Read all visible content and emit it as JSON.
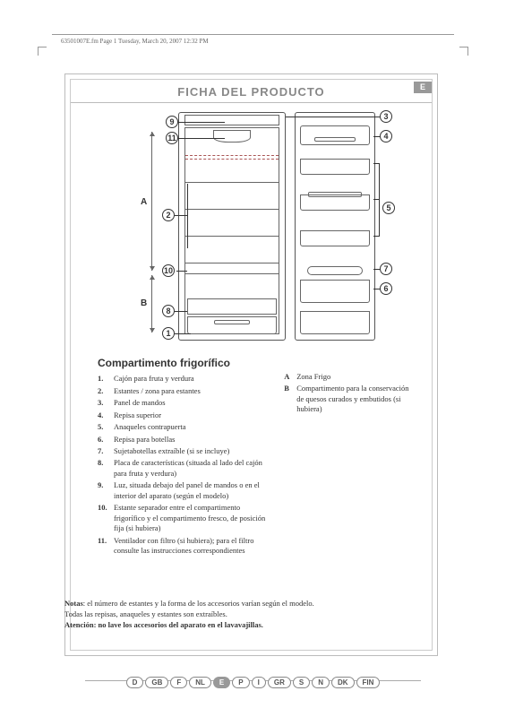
{
  "header": "63501007E.fm  Page 1  Tuesday, March 20, 2007  12:32 PM",
  "title": "FICHA DEL PRODUCTO",
  "lang_badge": "E",
  "callouts": {
    "c1": "1",
    "c2": "2",
    "c3": "3",
    "c4": "4",
    "c5": "5",
    "c6": "6",
    "c7": "7",
    "c8": "8",
    "c9": "9",
    "c10": "10",
    "c11": "11"
  },
  "zone_labels": {
    "A": "A",
    "B": "B"
  },
  "section_heading": "Compartimento frigorífico",
  "items": {
    "i1": "Cajón para fruta y verdura",
    "i2": "Estantes / zona para estantes",
    "i3": "Panel de mandos",
    "i4": "Repisa superior",
    "i5": "Anaqueles contrapuerta",
    "i6": "Repisa para botellas",
    "i7": "Sujetabotellas extraíble (si se incluye)",
    "i8": "Placa de características (situada al lado del cajón para fruta y verdura)",
    "i9": "Luz, situada debajo del panel de mandos o en el interior del aparato (según el modelo)",
    "i10": "Estante separador entre el compartimento frigorífico y el compartimento fresco, de posición fija (si hubiera)",
    "i11": "Ventilador con filtro (si hubiera); para el filtro consulte las instrucciones correspondientes"
  },
  "zones": {
    "zA": "Zona Frigo",
    "zB": "Compartimento para la conservación de quesos curados y embutidos (si hubiera)"
  },
  "notes": {
    "label": "Notas",
    "line1": ": el número de estantes y la forma de los accesorios varían según el modelo.",
    "line2": "Todas las repisas, anaqueles y estantes son extraíbles.",
    "label2": "Atención:",
    "line3": " no lave los accesorios del aparato en el lavavajillas."
  },
  "langs": [
    "D",
    "GB",
    "F",
    "NL",
    "E",
    "P",
    "I",
    "GR",
    "S",
    "N",
    "DK",
    "FIN"
  ],
  "active_lang": "E",
  "colors": {
    "frame": "#bbb",
    "text": "#333",
    "title": "#888"
  }
}
